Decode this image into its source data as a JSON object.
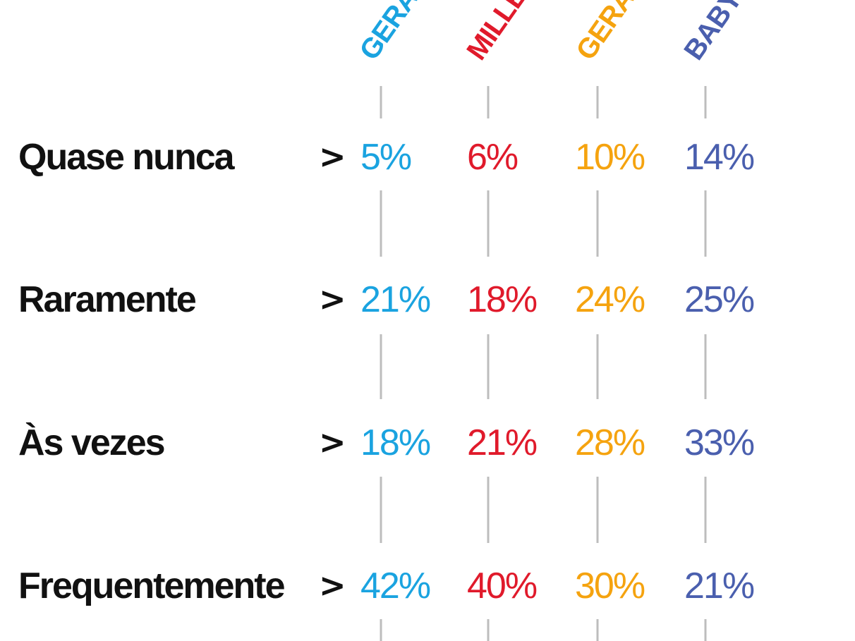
{
  "chart_data": {
    "type": "table",
    "title": "",
    "columns": [
      {
        "name": "GERAÇÃO Z",
        "color": "#1aa3e0"
      },
      {
        "name": "MILLENNIALS",
        "color": "#e01a2b"
      },
      {
        "name": "GERAÇÃO X",
        "color": "#f5a30f"
      },
      {
        "name": "BABY BOOMERS",
        "color": "#4a5fae"
      }
    ],
    "rows": [
      {
        "label": "Quase nunca",
        "values": [
          "5%",
          "6%",
          "10%",
          "14%"
        ]
      },
      {
        "label": "Raramente",
        "values": [
          "21%",
          "18%",
          "24%",
          "25%"
        ]
      },
      {
        "label": "Às vezes",
        "values": [
          "18%",
          "21%",
          "28%",
          "33%"
        ]
      },
      {
        "label": "Frequentemente",
        "values": [
          "42%",
          "40%",
          "30%",
          "21%"
        ]
      }
    ],
    "row_marker": ">",
    "grid": false
  }
}
